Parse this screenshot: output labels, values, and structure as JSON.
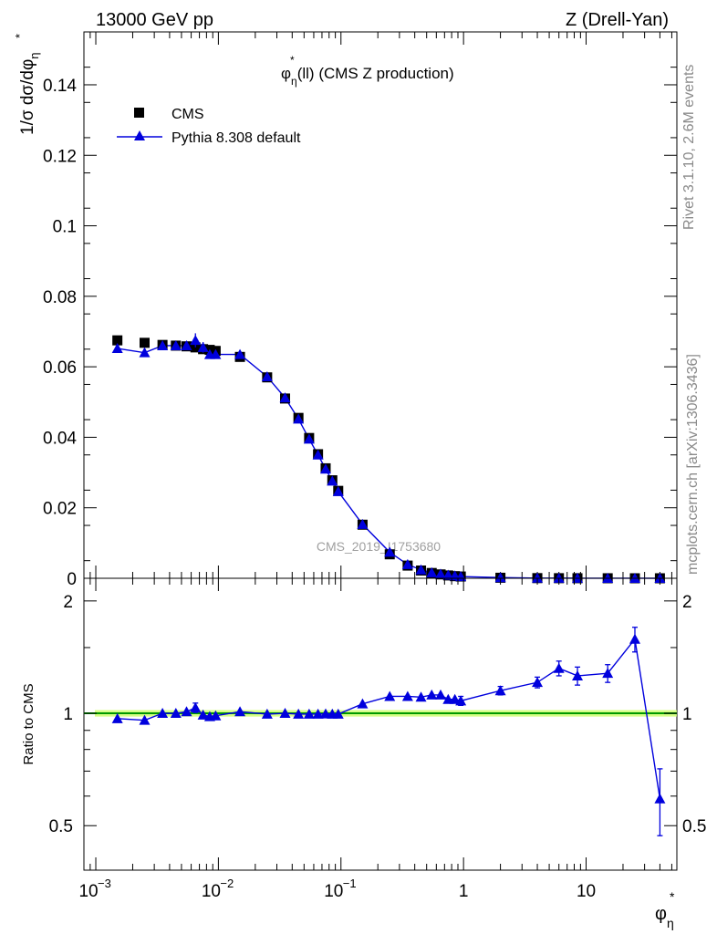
{
  "header": {
    "left_title": "13000 GeV pp",
    "right_title": "Z (Drell-Yan)"
  },
  "side_text": {
    "rivet": "Rivet 3.1.10,  2.6M events",
    "mcplots": "mcplots.cern.ch [arXiv:1306.3436]"
  },
  "watermark": "CMS_2019_I1753680",
  "chart_data": [
    {
      "type": "scatter",
      "title": "φ*η(ll) (CMS Z production)",
      "title_main": "φ",
      "title_sup": "*",
      "title_sub": "η",
      "title_rest": "(ll) (CMS Z production)",
      "ylabel": "1/σ dσ/dφ*η",
      "xlabel": "φ*η",
      "x_scale": "log",
      "xlim": [
        0.0008,
        55
      ],
      "ylim": [
        0,
        0.155
      ],
      "y_ticks": [
        "0",
        "0.02",
        "0.04",
        "0.06",
        "0.08",
        "0.1",
        "0.12",
        "0.14"
      ],
      "y_tick_values": [
        0,
        0.02,
        0.04,
        0.06,
        0.08,
        0.1,
        0.12,
        0.14
      ],
      "legend_position": "top-left",
      "series": [
        {
          "name": "CMS",
          "color": "#000000",
          "marker": "square",
          "x": [
            0.0015,
            0.0025,
            0.0035,
            0.0045,
            0.0055,
            0.0065,
            0.0075,
            0.0085,
            0.0095,
            0.015,
            0.025,
            0.035,
            0.045,
            0.055,
            0.065,
            0.075,
            0.085,
            0.095,
            0.15,
            0.25,
            0.35,
            0.45,
            0.55,
            0.65,
            0.75,
            0.85,
            0.95,
            2,
            4,
            6,
            8.5,
            15,
            25,
            40
          ],
          "y": [
            0.0675,
            0.0668,
            0.0662,
            0.066,
            0.0658,
            0.0655,
            0.065,
            0.0648,
            0.0645,
            0.0628,
            0.057,
            0.051,
            0.0455,
            0.0398,
            0.0352,
            0.0312,
            0.0278,
            0.0248,
            0.0152,
            0.0068,
            0.0036,
            0.0022,
            0.0015,
            0.0011,
            0.0008,
            0.0006,
            0.0005,
            0.00015,
            5e-05,
            3e-05,
            2e-05,
            1e-05,
            5e-06,
            3e-06
          ]
        },
        {
          "name": "Pythia 8.308 default",
          "color": "#0000dd",
          "marker": "triangle",
          "x": [
            0.0015,
            0.0025,
            0.0035,
            0.0045,
            0.0055,
            0.0065,
            0.0075,
            0.0085,
            0.0095,
            0.015,
            0.025,
            0.035,
            0.045,
            0.055,
            0.065,
            0.075,
            0.085,
            0.095,
            0.15,
            0.25,
            0.35,
            0.45,
            0.55,
            0.65,
            0.75,
            0.85,
            0.95,
            2,
            4,
            6,
            8.5,
            15,
            25,
            40
          ],
          "y": [
            0.0652,
            0.064,
            0.066,
            0.066,
            0.066,
            0.0675,
            0.0655,
            0.0635,
            0.0635,
            0.0635,
            0.0572,
            0.0512,
            0.0452,
            0.0395,
            0.035,
            0.031,
            0.0276,
            0.0246,
            0.0153,
            0.0074,
            0.0039,
            0.0024,
            0.0016,
            0.0012,
            0.0009,
            0.0007,
            0.0005,
            0.0002,
            6e-05,
            4e-05,
            3e-05,
            1e-05,
            6e-06,
            2e-06
          ],
          "yerr": [
            0.0012,
            0.0012,
            0.0012,
            0.0012,
            0.0012,
            0.002,
            0.0015,
            0.0012,
            0.0012,
            0.0008,
            0.0006,
            0.0005,
            0.0004,
            0.0004,
            0.0003,
            0.0003,
            0.0003,
            0.0003,
            0.0002,
            0.0001,
            0.0001,
            0.0001,
            0.0001,
            0.0001,
            0.0001,
            0.0001,
            0.0001,
            0,
            0,
            0,
            0,
            0,
            0,
            0
          ]
        }
      ]
    },
    {
      "type": "scatter",
      "ylabel": "Ratio to CMS",
      "xlabel": "φ*η",
      "x_scale": "log",
      "xlim": [
        0.0008,
        55
      ],
      "ylim": [
        0.38,
        2.3
      ],
      "x_ticks": [
        "10",
        "10",
        "10",
        "1",
        "10"
      ],
      "x_tick_exponents": [
        "−3",
        "−2",
        "−1",
        "",
        ""
      ],
      "x_tick_values": [
        0.001,
        0.01,
        0.1,
        1,
        10
      ],
      "y_ticks": [
        "0.5",
        "1",
        "2"
      ],
      "y_tick_values": [
        0.5,
        1,
        2
      ],
      "reference_band_color": "#ccff66",
      "reference_line_color": "#009900",
      "series": [
        {
          "name": "Pythia 8.308 default",
          "color": "#0000dd",
          "x": [
            0.0015,
            0.0025,
            0.0035,
            0.0045,
            0.0055,
            0.0065,
            0.0075,
            0.0085,
            0.0095,
            0.015,
            0.025,
            0.035,
            0.045,
            0.055,
            0.065,
            0.075,
            0.085,
            0.095,
            0.15,
            0.25,
            0.35,
            0.45,
            0.55,
            0.65,
            0.75,
            0.85,
            0.95,
            2,
            4,
            6,
            8.5,
            15,
            25,
            40
          ],
          "y": [
            0.968,
            0.958,
            1.0,
            1.0,
            1.01,
            1.035,
            0.99,
            0.98,
            0.985,
            1.01,
            0.995,
            1.0,
            0.995,
            0.995,
            0.995,
            0.997,
            0.995,
            0.995,
            1.06,
            1.11,
            1.11,
            1.105,
            1.12,
            1.12,
            1.09,
            1.09,
            1.08,
            1.15,
            1.21,
            1.32,
            1.26,
            1.28,
            1.58,
            0.59
          ],
          "yerr": [
            0.02,
            0.02,
            0.02,
            0.02,
            0.02,
            0.03,
            0.025,
            0.02,
            0.02,
            0.015,
            0.01,
            0.01,
            0.01,
            0.01,
            0.01,
            0.01,
            0.01,
            0.01,
            0.01,
            0.015,
            0.015,
            0.015,
            0.02,
            0.02,
            0.025,
            0.025,
            0.03,
            0.03,
            0.04,
            0.06,
            0.07,
            0.07,
            0.12,
            0.12
          ]
        }
      ]
    }
  ]
}
